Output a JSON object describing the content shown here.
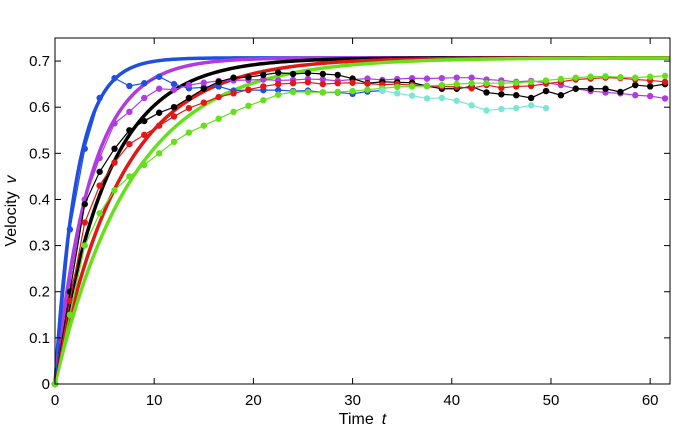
{
  "chart_data": {
    "type": "line",
    "title": "",
    "xlabel": {
      "text": "Time",
      "var": "t"
    },
    "ylabel": {
      "text": "Velocity",
      "var": "v"
    },
    "xlim": [
      0,
      62
    ],
    "ylim": [
      0,
      0.75
    ],
    "xticks": [
      0,
      10,
      20,
      30,
      40,
      50,
      60
    ],
    "yticks": [
      0,
      0.1,
      0.2,
      0.3,
      0.4,
      0.5,
      0.6,
      0.7
    ],
    "grid": false,
    "legend": "none",
    "model_curves": [
      {
        "color": "#1f4fe0",
        "vmax": 0.707,
        "tau": 2.2
      },
      {
        "color": "#b03ce0",
        "vmax": 0.707,
        "tau": 3.6
      },
      {
        "color": "#000000",
        "vmax": 0.707,
        "tau": 5.2
      },
      {
        "color": "#e01818",
        "vmax": 0.707,
        "tau": 6.6
      },
      {
        "color": "#66e01a",
        "vmax": 0.707,
        "tau": 7.8
      }
    ],
    "series": [
      {
        "color": "#1f4fe0",
        "x": [
          0,
          1.5,
          3,
          4.5,
          6,
          7.5,
          9,
          10.5,
          12,
          13.5,
          15,
          16.5,
          18,
          19.5,
          21,
          22.5,
          24,
          25.5,
          27,
          28.5,
          30,
          31.5,
          33
        ],
        "y": [
          0,
          0.335,
          0.51,
          0.62,
          0.663,
          0.646,
          0.652,
          0.666,
          0.65,
          0.641,
          0.643,
          0.645,
          0.636,
          0.637,
          0.637,
          0.637,
          0.635,
          0.636,
          0.632,
          0.632,
          0.629,
          0.634,
          0.636
        ]
      },
      {
        "color": "#b03ce0",
        "x": [
          0,
          1.5,
          3,
          4.5,
          6,
          7.5,
          9,
          10.5,
          12,
          13.5,
          15,
          16.5,
          18,
          19.5,
          21,
          22.5,
          24,
          25.5,
          27,
          28.5,
          30,
          31.5,
          33,
          34.5,
          36,
          37.5,
          39,
          40.5,
          42,
          43.5,
          45,
          46.5,
          48,
          49.5,
          51,
          52.5,
          54,
          55.5,
          57,
          58.5,
          60,
          61.5
        ],
        "y": [
          0,
          0.22,
          0.4,
          0.49,
          0.565,
          0.59,
          0.62,
          0.64,
          0.638,
          0.648,
          0.653,
          0.657,
          0.658,
          0.659,
          0.66,
          0.658,
          0.659,
          0.661,
          0.66,
          0.657,
          0.66,
          0.662,
          0.659,
          0.661,
          0.663,
          0.662,
          0.663,
          0.664,
          0.664,
          0.66,
          0.658,
          0.655,
          0.657,
          0.653,
          0.648,
          0.64,
          0.635,
          0.632,
          0.63,
          0.626,
          0.624,
          0.619
        ]
      },
      {
        "color": "#000000",
        "x": [
          0,
          1.5,
          3,
          4.5,
          6,
          7.5,
          9,
          10.5,
          12,
          13.5,
          15,
          16.5,
          18,
          19.5,
          21,
          22.5,
          24,
          25.5,
          27,
          28.5,
          30,
          31.5,
          33,
          34.5,
          36,
          37.5,
          39,
          40.5,
          42,
          43.5,
          45,
          46.5,
          48,
          49.5,
          51,
          52.5,
          54,
          55.5,
          57,
          58.5,
          60,
          61.5
        ],
        "y": [
          0,
          0.2,
          0.39,
          0.46,
          0.51,
          0.55,
          0.57,
          0.588,
          0.6,
          0.62,
          0.64,
          0.655,
          0.664,
          0.665,
          0.67,
          0.675,
          0.672,
          0.674,
          0.672,
          0.67,
          0.662,
          0.652,
          0.655,
          0.654,
          0.653,
          0.646,
          0.64,
          0.64,
          0.645,
          0.632,
          0.628,
          0.626,
          0.62,
          0.635,
          0.626,
          0.64,
          0.64,
          0.64,
          0.633,
          0.648,
          0.645,
          0.65
        ]
      },
      {
        "color": "#e01818",
        "x": [
          0,
          1.5,
          3,
          4.5,
          6,
          7.5,
          9,
          10.5,
          12,
          13.5,
          15,
          16.5,
          18,
          19.5,
          21,
          22.5,
          24,
          25.5,
          27,
          28.5,
          30,
          31.5,
          33,
          34.5,
          36,
          37.5,
          39,
          40.5,
          42,
          43.5,
          45,
          46.5,
          48,
          49.5,
          51,
          52.5,
          54,
          55.5,
          57,
          58.5,
          60,
          61.5
        ],
        "y": [
          0,
          0.18,
          0.35,
          0.43,
          0.48,
          0.52,
          0.54,
          0.56,
          0.58,
          0.598,
          0.61,
          0.622,
          0.63,
          0.638,
          0.645,
          0.65,
          0.652,
          0.654,
          0.65,
          0.652,
          0.653,
          0.651,
          0.649,
          0.65,
          0.648,
          0.646,
          0.645,
          0.644,
          0.641,
          0.648,
          0.642,
          0.645,
          0.646,
          0.651,
          0.655,
          0.66,
          0.662,
          0.664,
          0.663,
          0.66,
          0.658,
          0.655
        ]
      },
      {
        "color": "#66e01a",
        "x": [
          0,
          1.5,
          3,
          4.5,
          6,
          7.5,
          9,
          10.5,
          12,
          13.5,
          15,
          16.5,
          18,
          19.5,
          21,
          22.5,
          24,
          25.5,
          27,
          28.5,
          30,
          31.5,
          33,
          34.5,
          36,
          37.5,
          39,
          40.5,
          42,
          43.5,
          45,
          46.5,
          48,
          49.5,
          51,
          52.5,
          54,
          55.5,
          57,
          58.5,
          60,
          61.5
        ],
        "y": [
          0,
          0.15,
          0.3,
          0.37,
          0.42,
          0.45,
          0.475,
          0.5,
          0.525,
          0.545,
          0.56,
          0.575,
          0.59,
          0.603,
          0.615,
          0.627,
          0.633,
          0.633,
          0.632,
          0.633,
          0.635,
          0.638,
          0.641,
          0.644,
          0.645,
          0.646,
          0.648,
          0.65,
          0.652,
          0.652,
          0.652,
          0.653,
          0.655,
          0.658,
          0.661,
          0.664,
          0.666,
          0.667,
          0.665,
          0.664,
          0.666,
          0.668
        ]
      },
      {
        "color": "#7ce6d6",
        "x": [
          33,
          34.5,
          36,
          37.5,
          39,
          40.5,
          42,
          43.5,
          45,
          46.5,
          48,
          49.5
        ],
        "y": [
          0.636,
          0.63,
          0.625,
          0.619,
          0.62,
          0.614,
          0.604,
          0.593,
          0.596,
          0.598,
          0.604,
          0.598
        ]
      }
    ]
  }
}
